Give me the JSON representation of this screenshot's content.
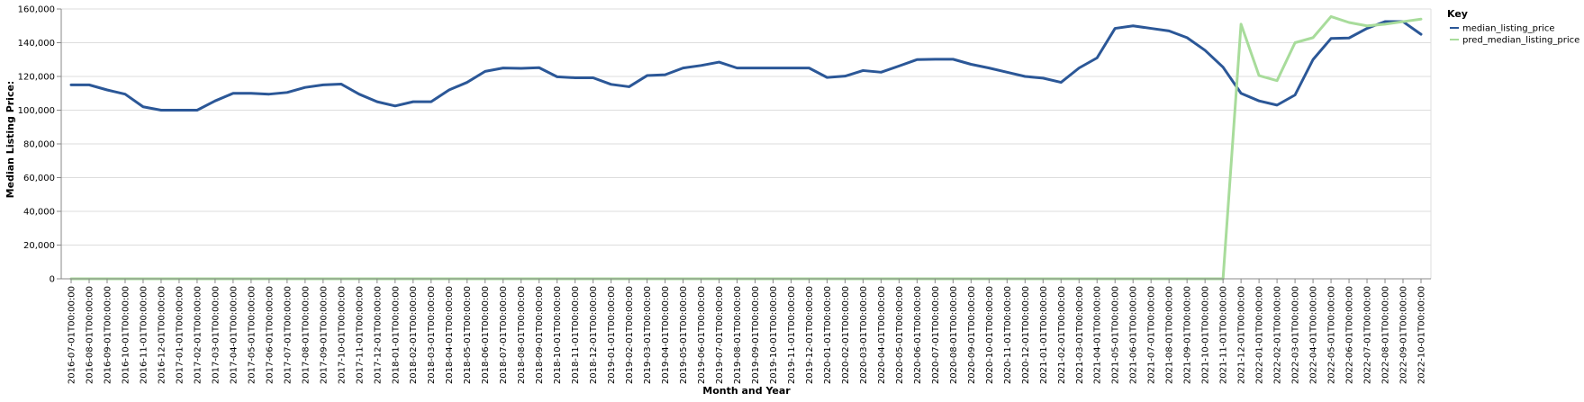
{
  "chart_data": {
    "type": "line",
    "xlabel": "Month and Year",
    "ylabel": "Median Listing Price:",
    "ylim": [
      0,
      160000
    ],
    "y_ticks": [
      0,
      20000,
      40000,
      60000,
      80000,
      100000,
      120000,
      140000,
      160000
    ],
    "y_tick_labels": [
      "0",
      "20,000",
      "40,000",
      "60,000",
      "80,000",
      "100,000",
      "120,000",
      "140,000",
      "160,000"
    ],
    "grid": true,
    "legend": {
      "title": "Key",
      "position": "top-right"
    },
    "x": [
      "2016-07-01T00:00:00",
      "2016-08-01T00:00:00",
      "2016-09-01T00:00:00",
      "2016-10-01T00:00:00",
      "2016-11-01T00:00:00",
      "2016-12-01T00:00:00",
      "2017-01-01T00:00:00",
      "2017-02-01T00:00:00",
      "2017-03-01T00:00:00",
      "2017-04-01T00:00:00",
      "2017-05-01T00:00:00",
      "2017-06-01T00:00:00",
      "2017-07-01T00:00:00",
      "2017-08-01T00:00:00",
      "2017-09-01T00:00:00",
      "2017-10-01T00:00:00",
      "2017-11-01T00:00:00",
      "2017-12-01T00:00:00",
      "2018-01-01T00:00:00",
      "2018-02-01T00:00:00",
      "2018-03-01T00:00:00",
      "2018-04-01T00:00:00",
      "2018-05-01T00:00:00",
      "2018-06-01T00:00:00",
      "2018-07-01T00:00:00",
      "2018-08-01T00:00:00",
      "2018-09-01T00:00:00",
      "2018-10-01T00:00:00",
      "2018-11-01T00:00:00",
      "2018-12-01T00:00:00",
      "2019-01-01T00:00:00",
      "2019-02-01T00:00:00",
      "2019-03-01T00:00:00",
      "2019-04-01T00:00:00",
      "2019-05-01T00:00:00",
      "2019-06-01T00:00:00",
      "2019-07-01T00:00:00",
      "2019-08-01T00:00:00",
      "2019-09-01T00:00:00",
      "2019-10-01T00:00:00",
      "2019-11-01T00:00:00",
      "2019-12-01T00:00:00",
      "2020-01-01T00:00:00",
      "2020-02-01T00:00:00",
      "2020-03-01T00:00:00",
      "2020-04-01T00:00:00",
      "2020-05-01T00:00:00",
      "2020-06-01T00:00:00",
      "2020-07-01T00:00:00",
      "2020-08-01T00:00:00",
      "2020-09-01T00:00:00",
      "2020-10-01T00:00:00",
      "2020-11-01T00:00:00",
      "2020-12-01T00:00:00",
      "2021-01-01T00:00:00",
      "2021-02-01T00:00:00",
      "2021-03-01T00:00:00",
      "2021-04-01T00:00:00",
      "2021-05-01T00:00:00",
      "2021-06-01T00:00:00",
      "2021-07-01T00:00:00",
      "2021-08-01T00:00:00",
      "2021-09-01T00:00:00",
      "2021-10-01T00:00:00",
      "2021-11-01T00:00:00",
      "2021-12-01T00:00:00",
      "2022-01-01T00:00:00",
      "2022-02-01T00:00:00",
      "2022-03-01T00:00:00",
      "2022-04-01T00:00:00",
      "2022-05-01T00:00:00",
      "2022-06-01T00:00:00",
      "2022-07-01T00:00:00",
      "2022-08-01T00:00:00",
      "2022-09-01T00:00:00",
      "2022-10-01T00:00:00"
    ],
    "series": [
      {
        "name": "median_listing_price",
        "color": "#2b5797",
        "values": [
          115000,
          115000,
          112000,
          109500,
          102000,
          100000,
          100000,
          100000,
          105500,
          110000,
          110000,
          109500,
          110500,
          113500,
          115000,
          115500,
          109500,
          105000,
          102500,
          105000,
          105000,
          112000,
          116500,
          123000,
          125000,
          124800,
          125200,
          119800,
          119200,
          119200,
          115300,
          113900,
          120500,
          121000,
          125000,
          126500,
          128500,
          125000,
          125000,
          125000,
          125000,
          125000,
          119400,
          120200,
          123500,
          122500,
          126200,
          130000,
          130200,
          130200,
          127200,
          125000,
          122500,
          120000,
          119000,
          116500,
          125000,
          131000,
          148500,
          150000,
          148500,
          147000,
          143000,
          135500,
          125500,
          110000,
          105500,
          103000,
          109000,
          130000,
          142500,
          142800,
          148500,
          152500,
          152500,
          145000
        ]
      },
      {
        "name": "pred_median_listing_price",
        "color": "#a8dc9b",
        "values": [
          0,
          0,
          0,
          0,
          0,
          0,
          0,
          0,
          0,
          0,
          0,
          0,
          0,
          0,
          0,
          0,
          0,
          0,
          0,
          0,
          0,
          0,
          0,
          0,
          0,
          0,
          0,
          0,
          0,
          0,
          0,
          0,
          0,
          0,
          0,
          0,
          0,
          0,
          0,
          0,
          0,
          0,
          0,
          0,
          0,
          0,
          0,
          0,
          0,
          0,
          0,
          0,
          0,
          0,
          0,
          0,
          0,
          0,
          0,
          0,
          0,
          0,
          0,
          0,
          0,
          151000,
          120500,
          117500,
          140000,
          143000,
          155500,
          152000,
          150000,
          151000,
          152500,
          154000
        ]
      }
    ]
  },
  "colors": {
    "grid": "#dddddd",
    "axis": "#888888"
  }
}
